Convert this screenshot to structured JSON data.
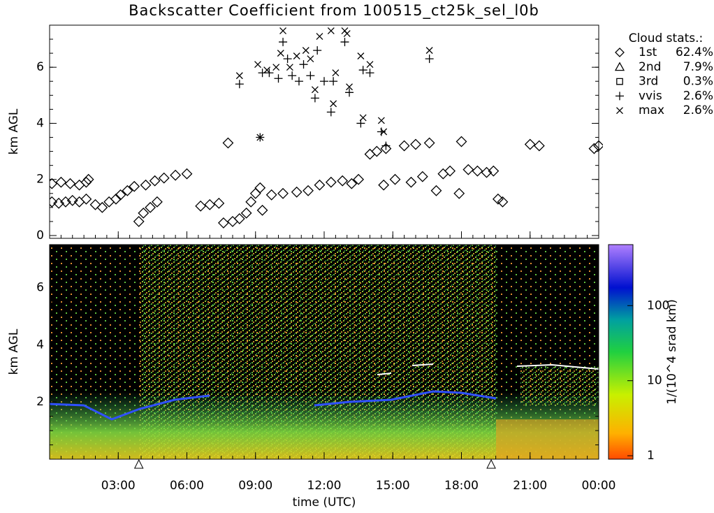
{
  "chart_data": [
    {
      "type": "scatter",
      "title": "Backscatter Coefficient from 100515_ct25k_sel_l0b",
      "ylabel": "km AGL",
      "legend_title": "Cloud stats.:",
      "xlim": [
        0,
        24
      ],
      "xticks": [
        3,
        6,
        9,
        12,
        15,
        18,
        21,
        24
      ],
      "ylim": [
        -0.1,
        7.5
      ],
      "yticks": [
        0,
        2,
        4,
        6
      ],
      "series": [
        {
          "name": "1st",
          "stat": "62.4%",
          "marker": "diamond",
          "color": "#000000",
          "x": [
            0.1,
            0.4,
            0.7,
            1.0,
            1.3,
            1.6,
            0.1,
            0.5,
            0.9,
            1.3,
            1.6,
            1.7,
            2.0,
            2.3,
            2.6,
            2.9,
            3.1,
            3.4,
            3.7,
            3.9,
            4.1,
            4.4,
            4.7,
            4.2,
            4.6,
            5.0,
            5.5,
            6.0,
            6.6,
            7.0,
            7.4,
            7.8,
            7.6,
            8.0,
            8.3,
            8.6,
            8.8,
            9.0,
            9.2,
            9.3,
            9.7,
            10.2,
            10.8,
            11.3,
            11.8,
            12.3,
            12.8,
            13.2,
            13.5,
            14.0,
            14.3,
            14.7,
            14.6,
            15.1,
            15.5,
            15.8,
            16.0,
            16.3,
            16.6,
            16.9,
            17.2,
            17.5,
            17.9,
            18.0,
            18.3,
            18.7,
            19.1,
            19.4,
            19.6,
            19.8,
            21.0,
            21.4,
            23.8,
            24.0
          ],
          "y": [
            1.2,
            1.15,
            1.2,
            1.25,
            1.2,
            1.3,
            1.85,
            1.9,
            1.85,
            1.8,
            1.9,
            2.0,
            1.1,
            1.0,
            1.2,
            1.3,
            1.45,
            1.6,
            1.75,
            0.5,
            0.8,
            1.0,
            1.2,
            1.8,
            1.95,
            2.05,
            2.15,
            2.2,
            1.05,
            1.1,
            1.15,
            3.3,
            0.45,
            0.5,
            0.6,
            0.8,
            1.2,
            1.5,
            1.7,
            0.9,
            1.45,
            1.5,
            1.55,
            1.6,
            1.8,
            1.9,
            1.95,
            1.85,
            2.0,
            2.9,
            3.0,
            3.1,
            1.8,
            2.0,
            3.2,
            1.9,
            3.25,
            2.1,
            3.3,
            1.6,
            2.2,
            2.3,
            1.5,
            3.35,
            2.35,
            2.3,
            2.25,
            2.3,
            1.3,
            1.2,
            3.25,
            3.2,
            3.1,
            3.2
          ]
        },
        {
          "name": "2nd",
          "stat": "7.9%",
          "marker": "triangle",
          "color": "#000000",
          "x": [],
          "y": []
        },
        {
          "name": "3rd",
          "stat": "0.3%",
          "marker": "square",
          "color": "#000000",
          "x": [],
          "y": []
        },
        {
          "name": "vvis",
          "stat": "2.6%",
          "marker": "plus",
          "color": "#000000",
          "x": [
            8.3,
            9.2,
            9.3,
            9.6,
            10.0,
            10.2,
            10.4,
            10.6,
            10.9,
            11.1,
            11.4,
            11.6,
            11.7,
            12.0,
            12.3,
            12.4,
            12.9,
            13.1,
            13.6,
            13.7,
            14.0,
            14.5,
            14.7,
            16.6
          ],
          "y": [
            5.4,
            3.5,
            5.8,
            5.8,
            5.6,
            6.9,
            6.3,
            5.7,
            5.5,
            6.1,
            5.7,
            4.9,
            6.6,
            5.5,
            4.4,
            5.5,
            6.9,
            5.1,
            4.0,
            5.9,
            5.8,
            3.7,
            3.2,
            6.3
          ]
        },
        {
          "name": "max",
          "stat": "2.6%",
          "marker": "cross",
          "color": "#000000",
          "x": [
            8.3,
            9.2,
            9.1,
            9.5,
            9.9,
            10.1,
            10.2,
            10.5,
            10.8,
            11.2,
            11.4,
            11.6,
            11.8,
            12.3,
            12.4,
            12.5,
            12.9,
            13.0,
            13.1,
            13.6,
            13.7,
            14.0,
            14.5,
            14.6,
            16.6
          ],
          "y": [
            5.7,
            3.5,
            6.1,
            5.9,
            6.0,
            6.5,
            7.3,
            6.0,
            6.4,
            6.6,
            6.3,
            5.2,
            7.1,
            7.3,
            4.7,
            5.8,
            7.3,
            7.2,
            5.3,
            6.4,
            4.2,
            6.1,
            4.1,
            3.7,
            6.6
          ]
        }
      ]
    },
    {
      "type": "heatmap",
      "ylabel": "km AGL",
      "xlabel": "time (UTC)",
      "xlim": [
        0,
        24
      ],
      "xticks": [
        {
          "value": 3,
          "label": "03:00"
        },
        {
          "value": 6,
          "label": "06:00"
        },
        {
          "value": 9,
          "label": "09:00"
        },
        {
          "value": 12,
          "label": "12:00"
        },
        {
          "value": 15,
          "label": "15:00"
        },
        {
          "value": 18,
          "label": "18:00"
        },
        {
          "value": 21,
          "label": "21:00"
        },
        {
          "value": 24,
          "label": "00:00"
        }
      ],
      "ylim": [
        0,
        7.5
      ],
      "yticks": [
        2,
        4,
        6
      ],
      "event_times": [
        3.9,
        19.3
      ],
      "colorbar_label": "1/(10^4 srad km)",
      "clim": [
        0.9,
        650
      ],
      "log_scale": true,
      "cticks": [
        1,
        10,
        100
      ]
    }
  ]
}
